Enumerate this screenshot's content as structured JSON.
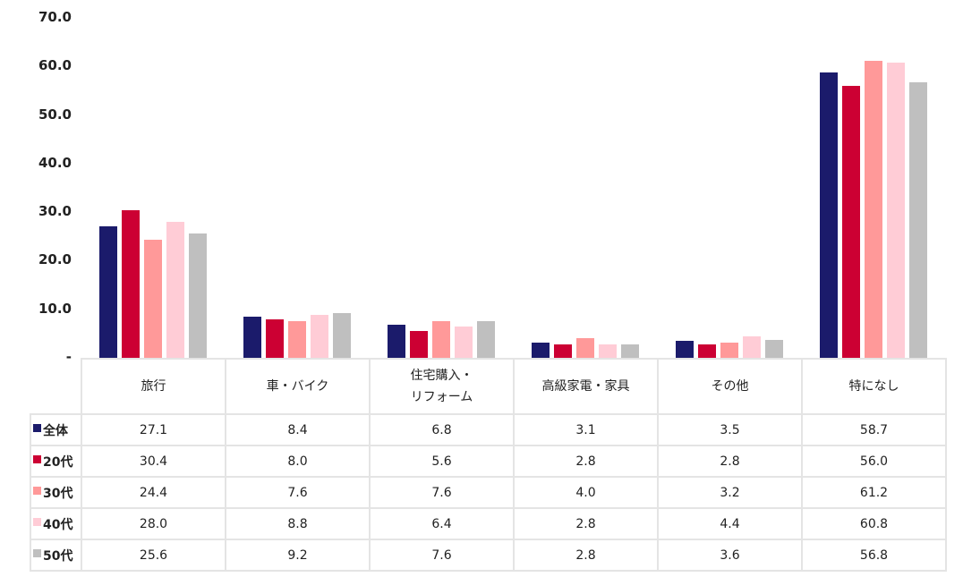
{
  "chart_data": {
    "type": "bar",
    "title": "",
    "xlabel": "",
    "ylabel": "",
    "ylim": [
      0,
      70
    ],
    "yticks": [
      "-",
      "10.0",
      "20.0",
      "30.0",
      "40.0",
      "50.0",
      "60.0",
      "70.0"
    ],
    "grid": false,
    "legend_position": "table-left",
    "categories": [
      "旅行",
      "車・バイク",
      "住宅購入・リフォーム",
      "高級家電・家具",
      "その他",
      "特になし"
    ],
    "category_lines": [
      [
        "旅行"
      ],
      [
        "車・バイク"
      ],
      [
        "住宅購入・",
        "リフォーム"
      ],
      [
        "高級家電・家具"
      ],
      [
        "その他"
      ],
      [
        "特になし"
      ]
    ],
    "series": [
      {
        "name": "全体",
        "color": "#1b1b6b",
        "values": [
          27.1,
          8.4,
          6.8,
          3.1,
          3.5,
          58.7
        ],
        "labels": [
          "27.1",
          "8.4",
          "6.8",
          "3.1",
          "3.5",
          "58.7"
        ]
      },
      {
        "name": "20代",
        "color": "#cc0033",
        "values": [
          30.4,
          8.0,
          5.6,
          2.8,
          2.8,
          56.0
        ],
        "labels": [
          "30.4",
          "8.0",
          "5.6",
          "2.8",
          "2.8",
          "56.0"
        ]
      },
      {
        "name": "30代",
        "color": "#ff9999",
        "values": [
          24.4,
          7.6,
          7.6,
          4.0,
          3.2,
          61.2
        ],
        "labels": [
          "24.4",
          "7.6",
          "7.6",
          "4.0",
          "3.2",
          "61.2"
        ]
      },
      {
        "name": "40代",
        "color": "#ffccd6",
        "values": [
          28.0,
          8.8,
          6.4,
          2.8,
          4.4,
          60.8
        ],
        "labels": [
          "28.0",
          "8.8",
          "6.4",
          "2.8",
          "4.4",
          "60.8"
        ]
      },
      {
        "name": "50代",
        "color": "#bfbfbf",
        "values": [
          25.6,
          9.2,
          7.6,
          2.8,
          3.6,
          56.8
        ],
        "labels": [
          "25.6",
          "9.2",
          "7.6",
          "2.8",
          "3.6",
          "56.8"
        ]
      }
    ]
  }
}
